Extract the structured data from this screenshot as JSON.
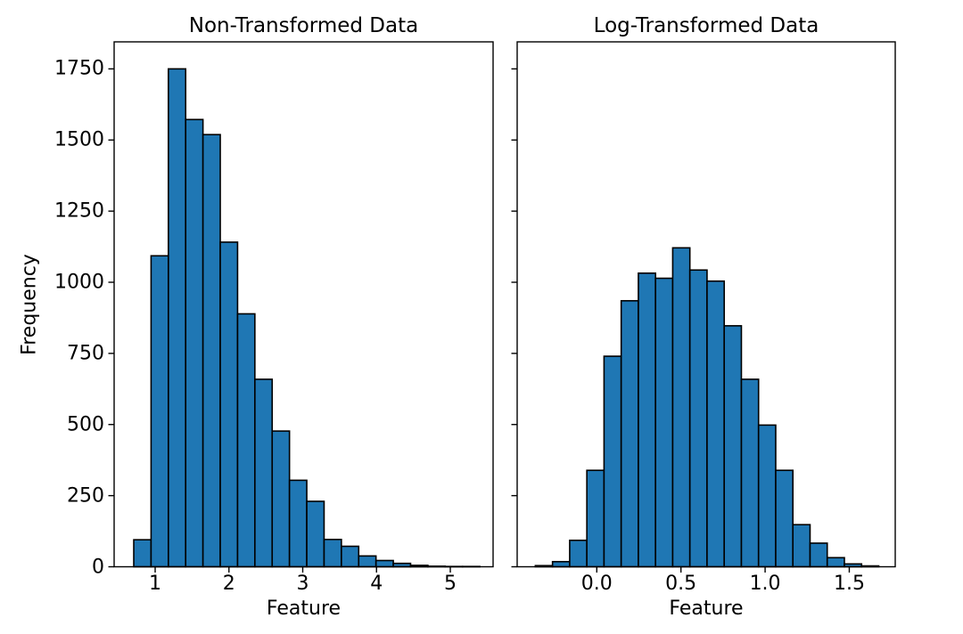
{
  "figure": {
    "background": "#ffffff",
    "text_color": "#000000",
    "spine_color": "#000000"
  },
  "chart_data": [
    {
      "type": "bar",
      "subtype": "histogram",
      "title": "Non-Transformed Data",
      "xlabel": "Feature",
      "ylabel": "Frequency",
      "bar_color": "#1f77b4",
      "bar_edge_color": "#000000",
      "grid": false,
      "legend": null,
      "bin_edges": [
        0.71,
        0.9445,
        1.179,
        1.4135,
        1.648,
        1.8825,
        2.117,
        2.3515,
        2.586,
        2.8205,
        3.055,
        3.2895,
        3.524,
        3.7585,
        3.993,
        4.2275,
        4.462,
        4.6965,
        4.931,
        5.1655,
        5.4
      ],
      "counts": [
        95,
        1093,
        1750,
        1572,
        1519,
        1141,
        889,
        659,
        477,
        304,
        230,
        96,
        72,
        38,
        22,
        12,
        5,
        2,
        1,
        1
      ],
      "xlim": [
        0.444,
        5.58
      ],
      "ylim": [
        0,
        1845
      ],
      "xticks": [
        1,
        2,
        3,
        4,
        5
      ],
      "xtick_labels": [
        "1",
        "2",
        "3",
        "4",
        "5"
      ],
      "yticks": [
        0,
        250,
        500,
        750,
        1000,
        1250,
        1500,
        1750
      ],
      "ytick_labels": [
        "0",
        "250",
        "500",
        "750",
        "1000",
        "1250",
        "1500",
        "1750"
      ],
      "show_ytick_labels": true
    },
    {
      "type": "bar",
      "subtype": "histogram",
      "title": "Log-Transformed Data",
      "xlabel": "Feature",
      "ylabel": "",
      "bar_color": "#1f77b4",
      "bar_edge_color": "#000000",
      "grid": false,
      "legend": null,
      "bin_edges": [
        -0.365,
        -0.263,
        -0.161,
        -0.059,
        0.043,
        0.145,
        0.247,
        0.349,
        0.451,
        0.553,
        0.655,
        0.757,
        0.859,
        0.961,
        1.063,
        1.165,
        1.267,
        1.369,
        1.471,
        1.573,
        1.675
      ],
      "counts": [
        4,
        18,
        93,
        339,
        740,
        935,
        1032,
        1014,
        1121,
        1043,
        1004,
        847,
        659,
        498,
        339,
        148,
        83,
        32,
        10,
        3
      ],
      "xlim": [
        -0.473,
        1.773
      ],
      "ylim": [
        0,
        1845
      ],
      "xticks": [
        0.0,
        0.5,
        1.0,
        1.5
      ],
      "xtick_labels": [
        "0.0",
        "0.5",
        "1.0",
        "1.5"
      ],
      "yticks": [
        0,
        250,
        500,
        750,
        1000,
        1250,
        1500,
        1750
      ],
      "ytick_labels": [
        "",
        "",
        "",
        "",
        "",
        "",
        "",
        ""
      ],
      "show_ytick_labels": false
    }
  ]
}
